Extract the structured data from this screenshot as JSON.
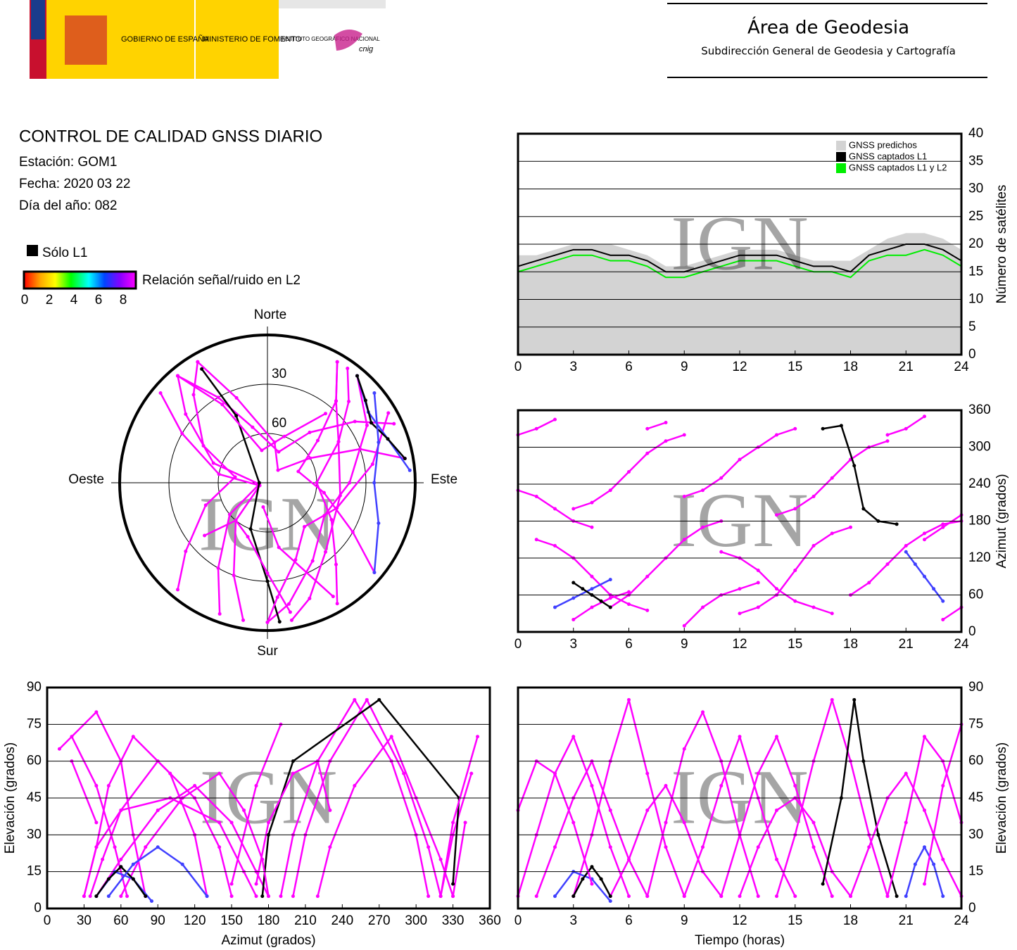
{
  "header": {
    "gobierno": "GOBIERNO DE ESPAÑA",
    "ministerio": "MINISTERIO DE FOMENTO",
    "instituto": "INSTITUTO GEOGRÁFICO NACIONAL",
    "cnig": "cnig",
    "area": "Área de Geodesia",
    "subdireccion": "Subdirección General de Geodesia y Cartografía"
  },
  "info": {
    "title": "CONTROL DE CALIDAD GNSS DIARIO",
    "station": "Estación: GOM1",
    "date": "Fecha: 2020 03 22",
    "doy": "Día del año: 082"
  },
  "legend": {
    "solo_l1": "Sólo L1",
    "solo_l1_color": "#000000",
    "snr": "Relación señal/ruido en L2",
    "snr_ticks": [
      0,
      2,
      4,
      6,
      8
    ]
  },
  "watermark": "IGN",
  "tracks": [
    {
      "color": "#ff00ff",
      "time": [
        0,
        1,
        2,
        3,
        4,
        5,
        6
      ],
      "azimuth": [
        320,
        330,
        345,
        20,
        40,
        55,
        65
      ],
      "elevation": [
        5,
        30,
        55,
        70,
        50,
        25,
        5
      ]
    },
    {
      "color": "#ff00ff",
      "time": [
        1,
        2,
        3,
        4,
        5,
        6,
        7
      ],
      "azimuth": [
        150,
        140,
        120,
        90,
        60,
        45,
        35
      ],
      "elevation": [
        5,
        25,
        45,
        60,
        40,
        20,
        5
      ]
    },
    {
      "color": "#ff00ff",
      "time": [
        3,
        4,
        5,
        6,
        7,
        8,
        9
      ],
      "azimuth": [
        200,
        210,
        230,
        260,
        290,
        310,
        320
      ],
      "elevation": [
        5,
        30,
        60,
        85,
        55,
        25,
        5
      ]
    },
    {
      "color": "#ff00ff",
      "time": [
        5,
        6,
        7,
        8,
        9,
        10,
        11
      ],
      "azimuth": [
        40,
        60,
        90,
        120,
        150,
        170,
        180
      ],
      "elevation": [
        5,
        20,
        40,
        50,
        35,
        15,
        5
      ]
    },
    {
      "color": "#ff00ff",
      "time": [
        7,
        8,
        9,
        10,
        11,
        12,
        13
      ],
      "azimuth": [
        330,
        340,
        10,
        40,
        60,
        70,
        80
      ],
      "elevation": [
        5,
        35,
        65,
        80,
        60,
        30,
        5
      ]
    },
    {
      "color": "#ff00ff",
      "time": [
        9,
        10,
        11,
        12,
        13,
        14,
        15
      ],
      "azimuth": [
        220,
        230,
        250,
        280,
        300,
        320,
        330
      ],
      "elevation": [
        5,
        25,
        50,
        70,
        45,
        20,
        5
      ]
    },
    {
      "color": "#ff00ff",
      "time": [
        11,
        12,
        13,
        14,
        15,
        16,
        17
      ],
      "azimuth": [
        130,
        120,
        100,
        70,
        50,
        40,
        30
      ],
      "elevation": [
        5,
        30,
        55,
        70,
        50,
        25,
        5
      ]
    },
    {
      "color": "#ff00ff",
      "time": [
        12,
        13,
        14,
        15,
        16,
        17,
        18
      ],
      "azimuth": [
        30,
        40,
        60,
        100,
        140,
        160,
        170
      ],
      "elevation": [
        5,
        25,
        40,
        45,
        35,
        15,
        5
      ]
    },
    {
      "color": "#ff00ff",
      "time": [
        14,
        15,
        16,
        17,
        18,
        19,
        20
      ],
      "azimuth": [
        190,
        200,
        220,
        250,
        280,
        300,
        310
      ],
      "elevation": [
        5,
        30,
        60,
        85,
        60,
        30,
        5
      ]
    },
    {
      "color": "#000000",
      "time": [
        16.5,
        17.5,
        18.2,
        18.7,
        19.5,
        20.5
      ],
      "azimuth": [
        330,
        335,
        270,
        200,
        180,
        175
      ],
      "elevation": [
        10,
        45,
        85,
        60,
        30,
        5
      ]
    },
    {
      "color": "#ff00ff",
      "time": [
        18,
        19,
        20,
        21,
        22,
        23,
        24
      ],
      "azimuth": [
        60,
        80,
        110,
        140,
        160,
        175,
        180
      ],
      "elevation": [
        5,
        25,
        45,
        55,
        40,
        20,
        5
      ]
    },
    {
      "color": "#ff00ff",
      "time": [
        20,
        21,
        22,
        23,
        24
      ],
      "azimuth": [
        320,
        330,
        350,
        20,
        40
      ],
      "elevation": [
        5,
        35,
        70,
        60,
        35
      ]
    },
    {
      "color": "#4040ff",
      "time": [
        2,
        3,
        4,
        5
      ],
      "azimuth": [
        40,
        55,
        70,
        85
      ],
      "elevation": [
        5,
        15,
        12,
        3
      ]
    },
    {
      "color": "#000000",
      "time": [
        3,
        3.5,
        4,
        4.5,
        5
      ],
      "azimuth": [
        80,
        70,
        60,
        50,
        40
      ],
      "elevation": [
        5,
        12,
        17,
        12,
        5
      ]
    },
    {
      "color": "#4040ff",
      "time": [
        21,
        21.5,
        22,
        22.5,
        23
      ],
      "azimuth": [
        130,
        110,
        90,
        70,
        50
      ],
      "elevation": [
        5,
        18,
        25,
        18,
        5
      ]
    },
    {
      "color": "#ff00ff",
      "time": [
        0,
        1,
        2,
        3,
        4
      ],
      "azimuth": [
        230,
        220,
        200,
        180,
        170
      ],
      "elevation": [
        40,
        60,
        55,
        35,
        10
      ]
    },
    {
      "color": "#ff00ff",
      "time": [
        22,
        23,
        24
      ],
      "azimuth": [
        150,
        170,
        190
      ],
      "elevation": [
        10,
        50,
        75
      ]
    }
  ],
  "chart_data": [
    {
      "type": "line",
      "x": [
        0,
        1,
        2,
        3,
        4,
        5,
        6,
        7,
        8,
        9,
        10,
        11,
        12,
        13,
        14,
        15,
        16,
        17,
        18,
        19,
        20,
        21,
        22,
        23,
        24
      ],
      "series": [
        {
          "name": "GNSS predichos",
          "color": "#d3d3d3",
          "fill": true,
          "values": [
            18,
            18,
            19,
            20,
            20,
            20,
            19,
            18,
            16,
            16,
            17,
            18,
            19,
            19,
            19,
            18,
            17,
            17,
            17,
            19,
            21,
            22,
            22,
            21,
            19
          ]
        },
        {
          "name": "GNSS captados L1",
          "color": "#000000",
          "values": [
            16,
            17,
            18,
            19,
            19,
            18,
            18,
            17,
            15,
            15,
            16,
            17,
            18,
            18,
            18,
            17,
            16,
            16,
            15,
            18,
            19,
            20,
            20,
            19,
            17
          ]
        },
        {
          "name": "GNSS captados L1 y L2",
          "color": "#00ee00",
          "values": [
            15,
            16,
            17,
            18,
            18,
            17,
            17,
            16,
            14,
            14,
            15,
            16,
            17,
            17,
            17,
            16,
            15,
            15,
            14,
            17,
            18,
            18,
            19,
            18,
            16
          ]
        }
      ],
      "xlim": [
        0,
        24
      ],
      "xticks": [
        0,
        3,
        6,
        9,
        12,
        15,
        18,
        21,
        24
      ],
      "ylim": [
        0,
        40
      ],
      "yticks": [
        0,
        5,
        10,
        15,
        20,
        25,
        30,
        35,
        40
      ],
      "ylabel": "Número de satélites",
      "yaxis": "right",
      "grid": true,
      "legend": "top-right"
    },
    {
      "type": "polar",
      "labels": {
        "north": "Norte",
        "south": "Sur",
        "east": "Este",
        "west": "Oeste"
      },
      "rings": [
        30,
        60
      ]
    },
    {
      "type": "track",
      "x_field": "time",
      "y_field": "azimuth",
      "xlim": [
        0,
        24
      ],
      "xticks": [
        0,
        3,
        6,
        9,
        12,
        15,
        18,
        21,
        24
      ],
      "ylim": [
        0,
        360
      ],
      "yticks": [
        0,
        60,
        120,
        180,
        240,
        300,
        360
      ],
      "ylabel": "Azimut (grados)",
      "yaxis": "right",
      "grid": true
    },
    {
      "type": "track",
      "x_field": "azimuth",
      "y_field": "elevation",
      "xlim": [
        0,
        360
      ],
      "xticks": [
        0,
        30,
        60,
        90,
        120,
        150,
        180,
        210,
        240,
        270,
        300,
        330,
        360
      ],
      "ylim": [
        0,
        90
      ],
      "yticks": [
        0,
        15,
        30,
        45,
        60,
        75,
        90
      ],
      "xlabel": "Azimut (grados)",
      "ylabel": "Elevación (grados)",
      "yaxis": "left",
      "grid": true
    },
    {
      "type": "track",
      "x_field": "time",
      "y_field": "elevation",
      "xlim": [
        0,
        24
      ],
      "xticks": [
        0,
        3,
        6,
        9,
        12,
        15,
        18,
        21,
        24
      ],
      "ylim": [
        0,
        90
      ],
      "yticks": [
        0,
        15,
        30,
        45,
        60,
        75,
        90
      ],
      "xlabel": "Tiempo (horas)",
      "ylabel": "Elevación (grados)",
      "yaxis": "right",
      "grid": true
    }
  ]
}
